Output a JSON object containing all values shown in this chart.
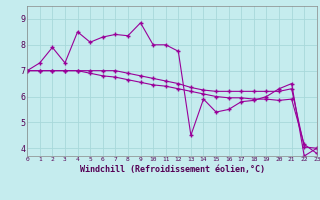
{
  "xlabel": "Windchill (Refroidissement éolien,°C)",
  "ylabel": "",
  "bg_color": "#c5ecee",
  "line_color": "#990099",
  "grid_color": "#a8d8da",
  "x_ticks": [
    0,
    1,
    2,
    3,
    4,
    5,
    6,
    7,
    8,
    9,
    10,
    11,
    12,
    13,
    14,
    15,
    16,
    17,
    18,
    19,
    20,
    21,
    22,
    23
  ],
  "y_ticks": [
    4,
    5,
    6,
    7,
    8,
    9
  ],
  "xlim": [
    0,
    23
  ],
  "ylim": [
    3.7,
    9.5
  ],
  "series": [
    [
      7.0,
      7.3,
      7.9,
      7.3,
      8.5,
      8.1,
      8.3,
      8.4,
      8.35,
      8.85,
      8.0,
      8.0,
      7.75,
      4.5,
      5.9,
      5.4,
      5.5,
      5.8,
      5.85,
      6.0,
      6.3,
      6.5,
      3.7,
      4.0
    ],
    [
      7.0,
      7.0,
      7.0,
      7.0,
      7.0,
      7.0,
      7.0,
      7.0,
      6.9,
      6.8,
      6.7,
      6.6,
      6.5,
      6.35,
      6.25,
      6.2,
      6.2,
      6.2,
      6.2,
      6.2,
      6.2,
      6.3,
      4.05,
      4.0
    ],
    [
      7.0,
      7.0,
      7.0,
      7.0,
      7.0,
      6.9,
      6.8,
      6.75,
      6.65,
      6.55,
      6.45,
      6.4,
      6.3,
      6.2,
      6.1,
      6.0,
      5.95,
      5.95,
      5.9,
      5.9,
      5.85,
      5.9,
      4.15,
      3.8
    ]
  ]
}
